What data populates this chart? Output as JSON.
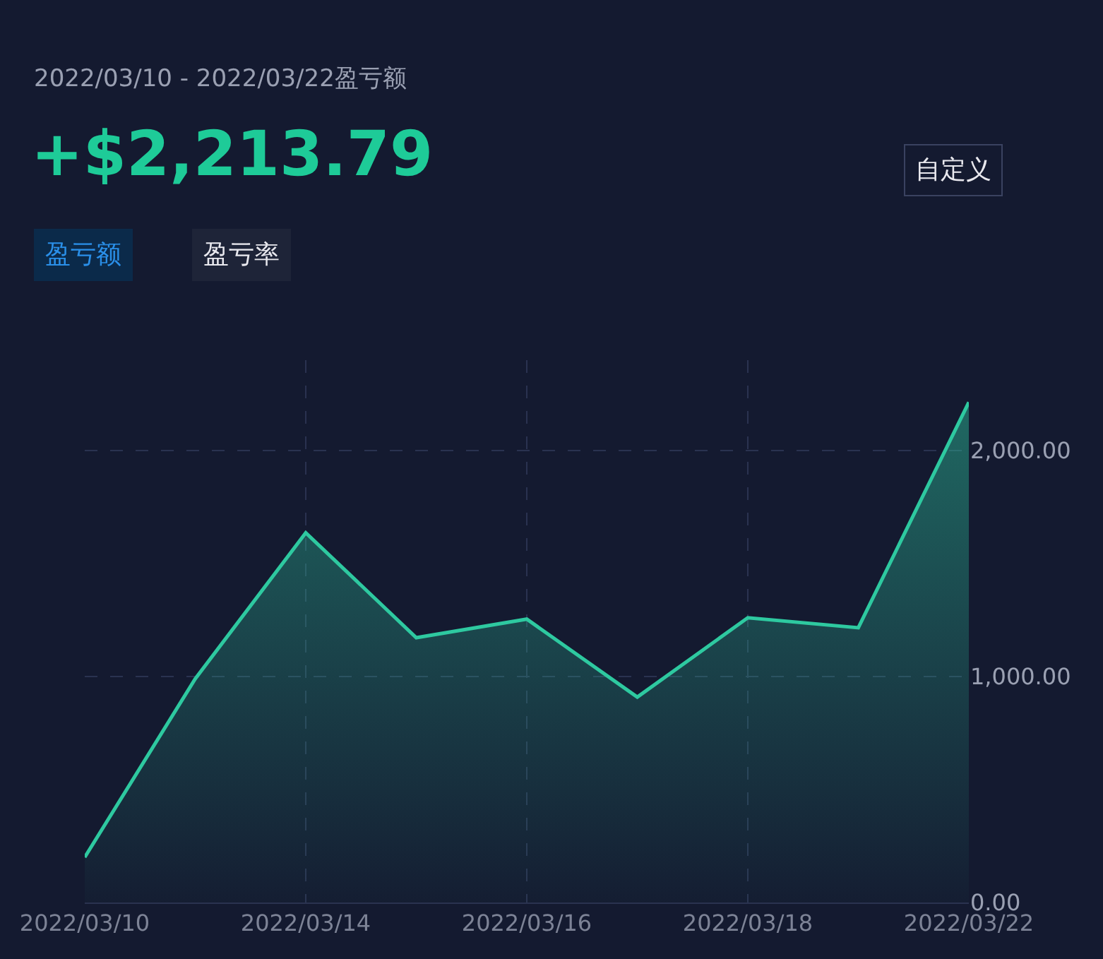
{
  "chart_data": {
    "type": "area",
    "title": "+$2,213.79",
    "subtitle": "2022/03/10 - 2022/03/22盈亏额",
    "annotations": [
      "盈亏额",
      "盈亏率",
      "自定义"
    ],
    "categories": [
      "2022/03/10",
      null,
      "2022/03/14",
      null,
      "2022/03/16",
      null,
      "2022/03/18",
      null,
      "2022/03/22"
    ],
    "series": [
      {
        "color": "#2ec9a0",
        "values": [
          200,
          990,
          1636,
          1172,
          1254,
          909,
          1260,
          1216,
          2214
        ]
      }
    ],
    "ylim": [
      0,
      2400
    ],
    "yticks": [
      {
        "value": 0,
        "label": "0.00"
      },
      {
        "value": 1000,
        "label": "1,000.00"
      },
      {
        "value": 2000,
        "label": "2,000.00"
      }
    ],
    "grid": true,
    "line_style": "solid",
    "marker": "none"
  }
}
